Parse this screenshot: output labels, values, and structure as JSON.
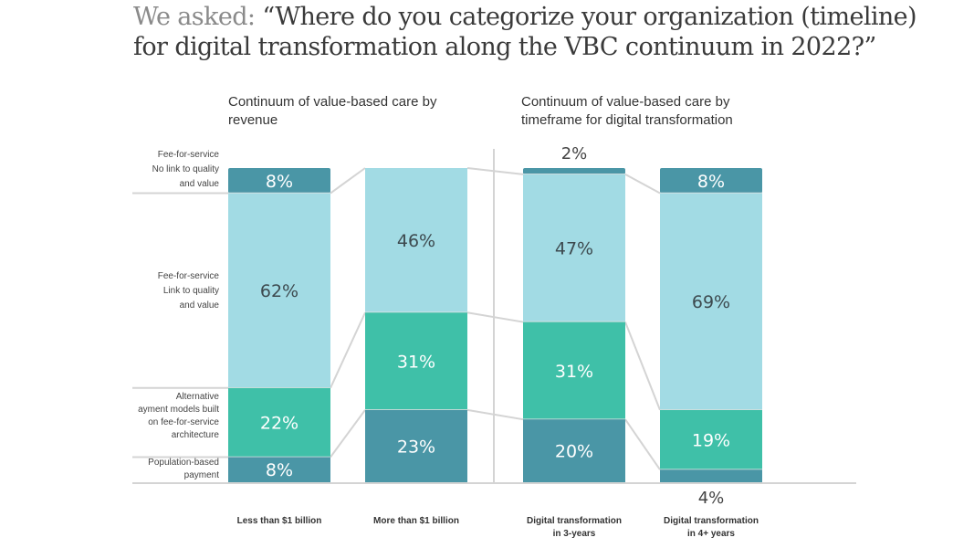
{
  "title": {
    "lead": "We asked: ",
    "question": "“Where do you categorize your organization (timeline) for digital transformation along the VBC continuum in 2022?”"
  },
  "panels": [
    {
      "title": "Continuum of value-based care by revenue"
    },
    {
      "title": "Continuum of value-based care by timeframe for digital transformation"
    }
  ],
  "row_labels": [
    {
      "lines": [
        "Fee-for-service",
        "No link to quality",
        "and value"
      ]
    },
    {
      "lines": [
        "Fee-for-service",
        "Link to quality",
        "and value"
      ]
    },
    {
      "lines": [
        "Alternative",
        "ayment models built",
        "on fee-for-service",
        "architecture"
      ]
    },
    {
      "lines": [
        "Population-based",
        "payment"
      ]
    }
  ],
  "colors": {
    "no_link": "#4a96a6",
    "link": "#a2dbe4",
    "apm": "#3fc0a8",
    "population": "#4a96a6",
    "light_text": "#ffffff",
    "dark_text": "#3d4a4f",
    "grid": "#d4d4d4"
  },
  "chart_data": {
    "type": "bar",
    "stacked": true,
    "title": "We asked: “Where do you categorize your organization (timeline) for digital transformation along the VBC continuum in 2022?”",
    "categories": [
      "Less than $1 billion",
      "More than $1 billion",
      "Digital transformation in 3-years",
      "Digital transformation in 4+ years"
    ],
    "series": [
      {
        "name": "Fee-for-service No link to quality and value",
        "values": [
          8,
          0,
          2,
          8
        ],
        "labels": [
          "8%",
          "",
          "2%",
          "8%"
        ]
      },
      {
        "name": "Fee-for-service Link to quality and value",
        "values": [
          62,
          46,
          47,
          69
        ],
        "labels": [
          "62%",
          "46%",
          "47%",
          "69%"
        ]
      },
      {
        "name": "Alternative payment models built on fee-for-service architecture",
        "values": [
          22,
          31,
          31,
          19
        ],
        "labels": [
          "22%",
          "31%",
          "31%",
          "19%"
        ]
      },
      {
        "name": "Population-based payment",
        "values": [
          8,
          23,
          20,
          4
        ],
        "labels": [
          "8%",
          "23%",
          "20%",
          "4%"
        ]
      }
    ],
    "ylim": [
      0,
      100
    ],
    "unit": "%",
    "panels": [
      {
        "title": "Continuum of value-based care by revenue",
        "categories": [
          "Less than $1 billion",
          "More than $1 billion"
        ]
      },
      {
        "title": "Continuum of value-based care by timeframe for digital transformation",
        "categories": [
          "Digital transformation in 3-years",
          "Digital transformation in 4+ years"
        ]
      }
    ],
    "category_label_lines": [
      [
        "Less than $1 billion"
      ],
      [
        "More than $1 billion"
      ],
      [
        "Digital transformation",
        "in 3-years"
      ],
      [
        "Digital transformation",
        "in 4+ years"
      ]
    ]
  }
}
